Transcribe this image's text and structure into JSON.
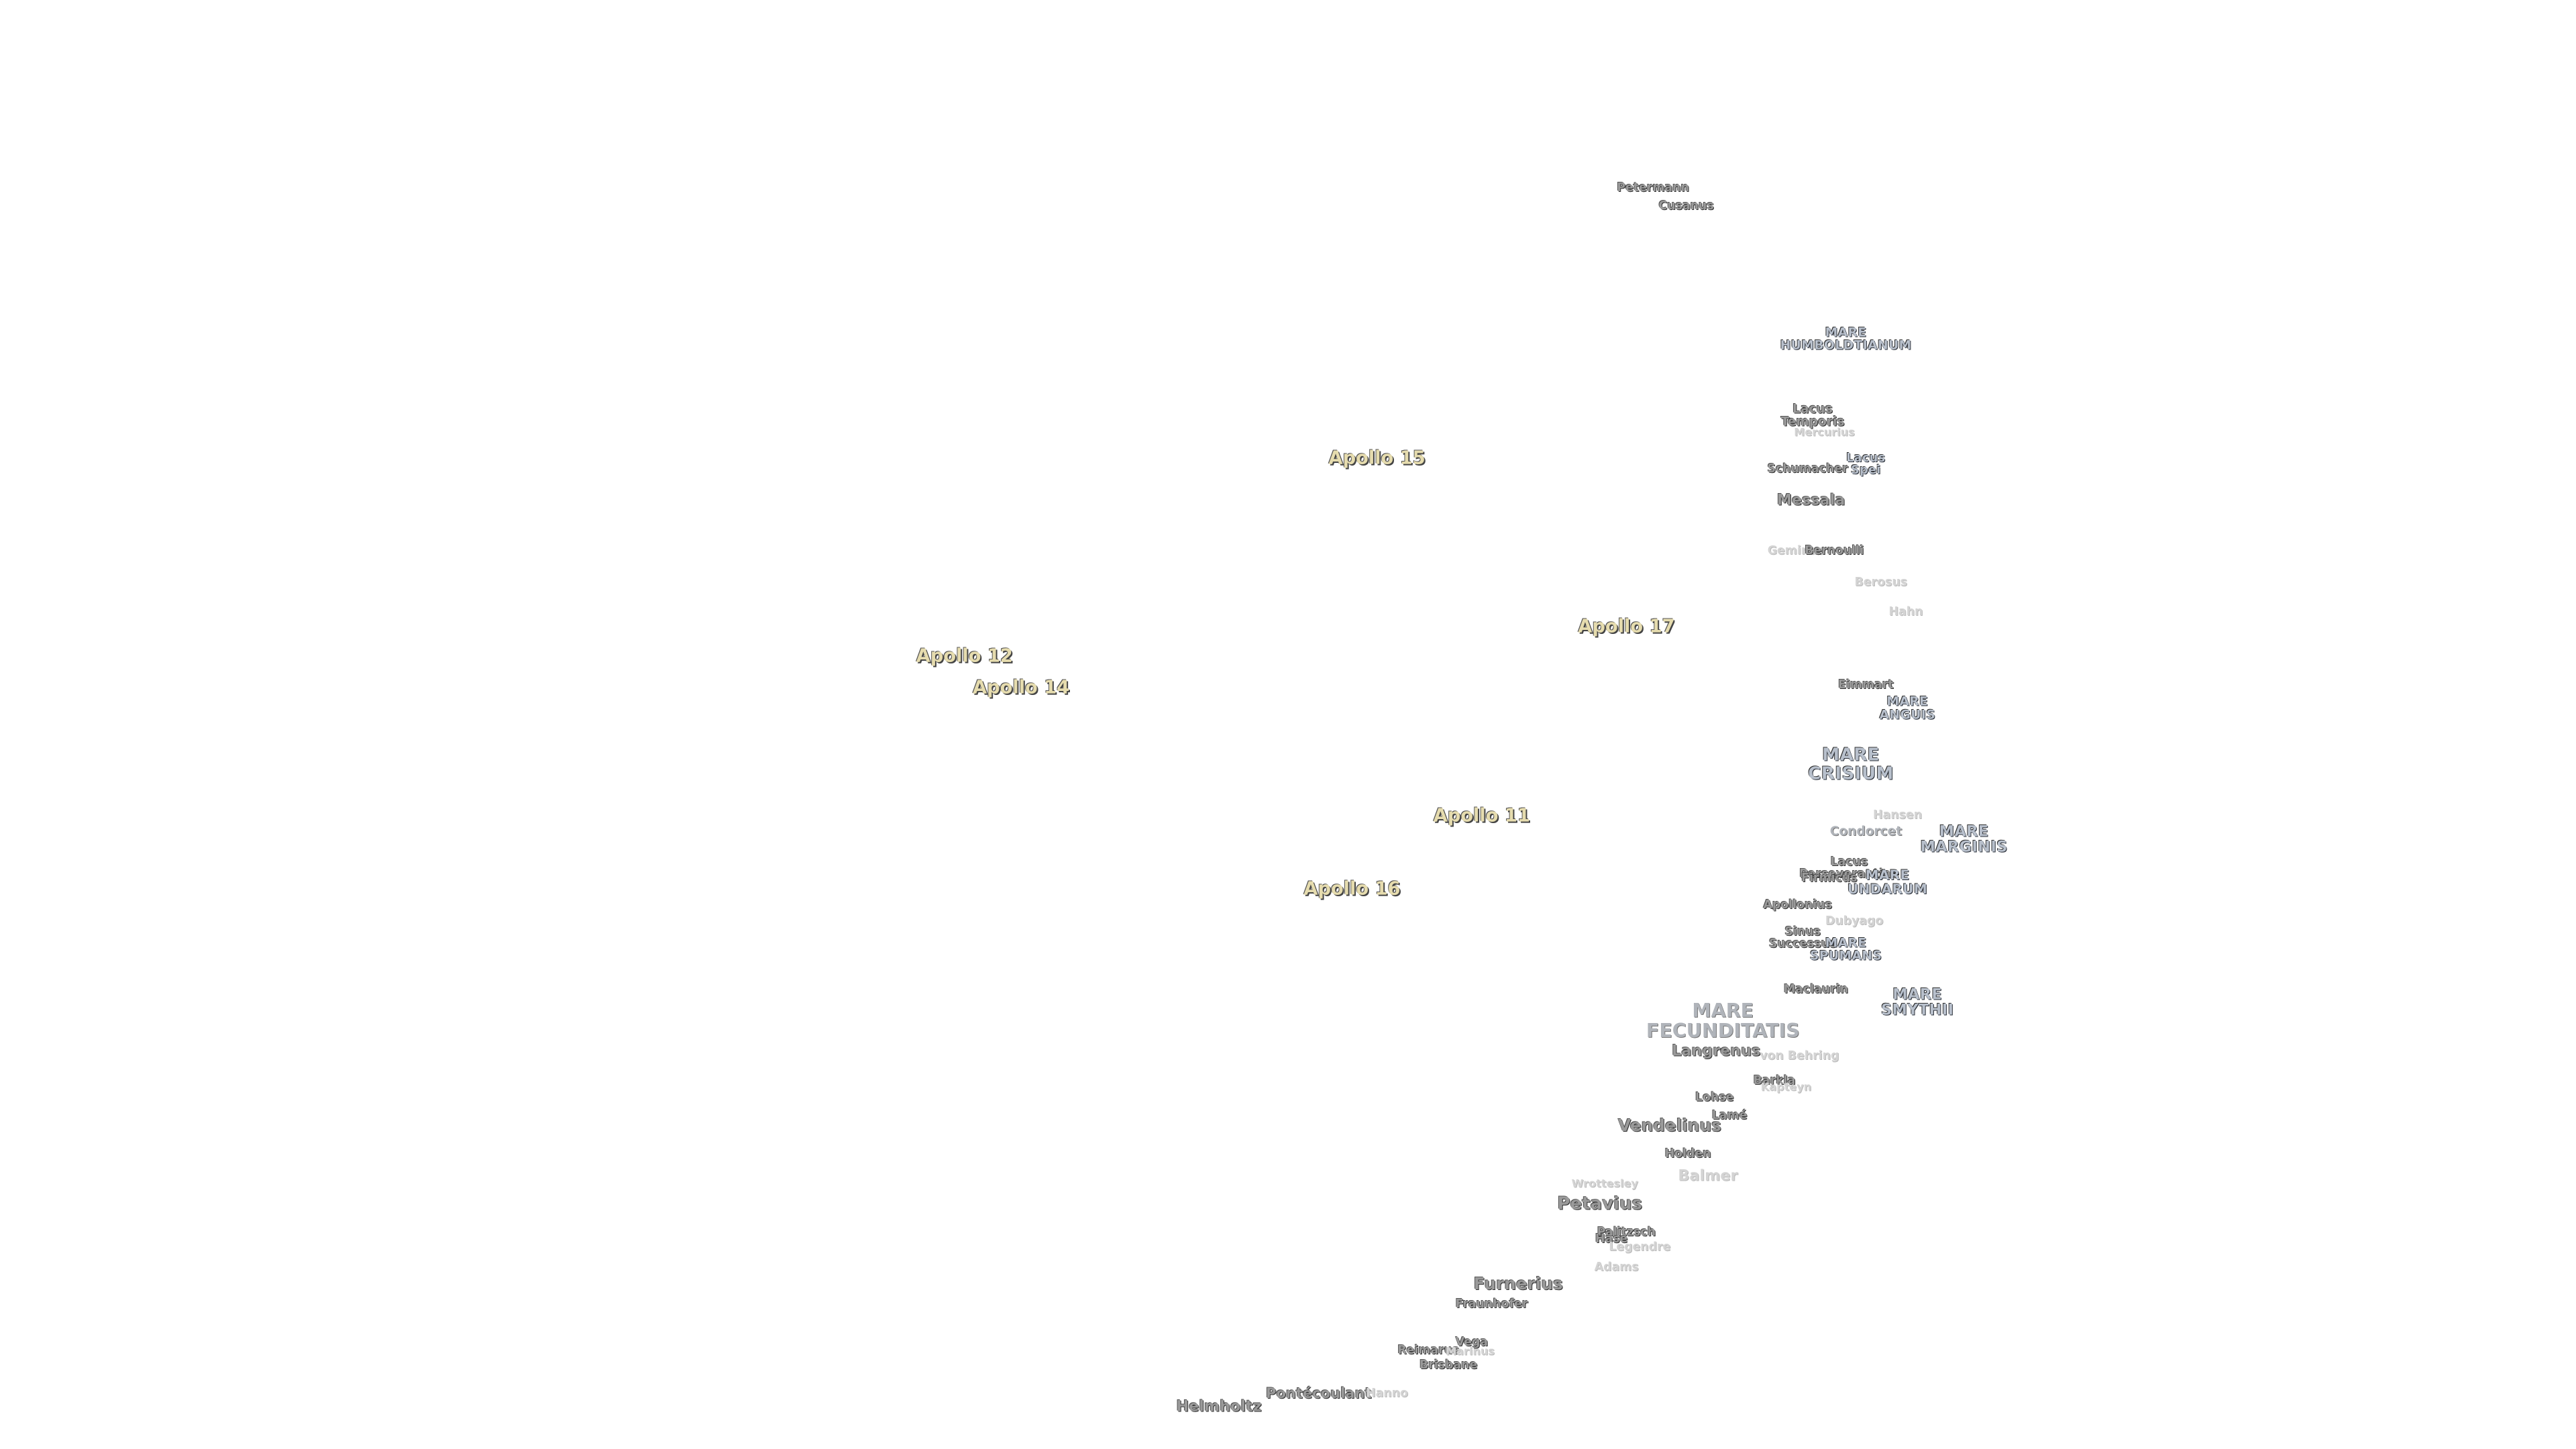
{
  "map_labels": [
    {
      "lines": [
        "Petermann"
      ]
    },
    {
      "lines": [
        "Cusanus"
      ]
    },
    {
      "lines": [
        "MARE",
        "HUMBOLDTIANUM"
      ]
    },
    {
      "lines": [
        "Lacus",
        "Temporis"
      ]
    },
    {
      "lines": [
        "Mercurius"
      ]
    },
    {
      "lines": [
        "Lacus",
        "Spei"
      ]
    },
    {
      "lines": [
        "Schumacher"
      ]
    },
    {
      "lines": [
        "Messala"
      ]
    },
    {
      "lines": [
        "Geminus"
      ]
    },
    {
      "lines": [
        "Bernoulli"
      ]
    },
    {
      "lines": [
        "Berosus"
      ]
    },
    {
      "lines": [
        "Hahn"
      ]
    },
    {
      "lines": [
        "Apollo 15"
      ]
    },
    {
      "lines": [
        "Apollo 17"
      ]
    },
    {
      "lines": [
        "Apollo 12"
      ]
    },
    {
      "lines": [
        "Apollo 14"
      ]
    },
    {
      "lines": [
        "Apollo 11"
      ]
    },
    {
      "lines": [
        "Apollo 16"
      ]
    },
    {
      "lines": [
        "Eimmart"
      ]
    },
    {
      "lines": [
        "MARE",
        "ANGUIS"
      ]
    },
    {
      "lines": [
        "MARE",
        "CRISIUM"
      ]
    },
    {
      "lines": [
        "Hansen"
      ]
    },
    {
      "lines": [
        "Condorcet"
      ]
    },
    {
      "lines": [
        "MARE",
        "MARGINIS"
      ]
    },
    {
      "lines": [
        "Lacus",
        "Perseverantiae"
      ]
    },
    {
      "lines": [
        "Firmicus"
      ]
    },
    {
      "lines": [
        "MARE",
        "UNDARUM"
      ]
    },
    {
      "lines": [
        "Apollonius"
      ]
    },
    {
      "lines": [
        "Dubyago"
      ]
    },
    {
      "lines": [
        "Sinus",
        "Successus"
      ]
    },
    {
      "lines": [
        "MARE",
        "SPUMANS"
      ]
    },
    {
      "lines": [
        "Maclaurin"
      ]
    },
    {
      "lines": [
        "MARE",
        "SMYTHII"
      ]
    },
    {
      "lines": [
        "MARE",
        "FECUNDITATIS"
      ]
    },
    {
      "lines": [
        "Langrenus"
      ]
    },
    {
      "lines": [
        "von Behring"
      ]
    },
    {
      "lines": [
        "Barkla"
      ]
    },
    {
      "lines": [
        "Kapteyn"
      ]
    },
    {
      "lines": [
        "Lohse"
      ]
    },
    {
      "lines": [
        "Lamé"
      ]
    },
    {
      "lines": [
        "Vendelinus"
      ]
    },
    {
      "lines": [
        "Holden"
      ]
    },
    {
      "lines": [
        "Balmer"
      ]
    },
    {
      "lines": [
        "Wrottesley"
      ]
    },
    {
      "lines": [
        "Petavius"
      ]
    },
    {
      "lines": [
        "Palitzsch"
      ]
    },
    {
      "lines": [
        "Hase"
      ]
    },
    {
      "lines": [
        "Legendre"
      ]
    },
    {
      "lines": [
        "Adams"
      ]
    },
    {
      "lines": [
        "Furnerius"
      ]
    },
    {
      "lines": [
        "Fraunhofer"
      ]
    },
    {
      "lines": [
        "Vega"
      ]
    },
    {
      "lines": [
        "Reimarus"
      ]
    },
    {
      "lines": [
        "Marinus"
      ]
    },
    {
      "lines": [
        "Brisbane"
      ]
    },
    {
      "lines": [
        "Pontécoulant"
      ]
    },
    {
      "lines": [
        "Hanno"
      ]
    },
    {
      "lines": [
        "Helmholtz"
      ]
    }
  ]
}
